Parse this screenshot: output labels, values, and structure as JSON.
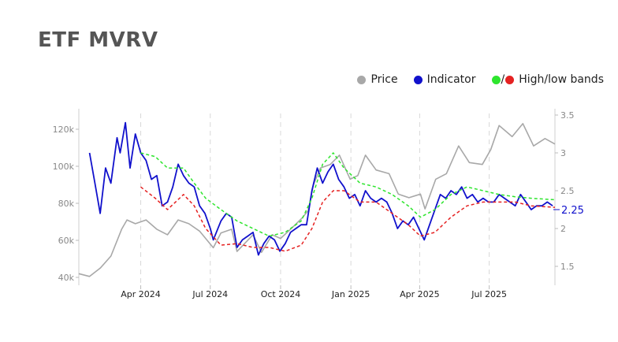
{
  "title": "ETF MVRV",
  "legend": {
    "price": {
      "label": "Price",
      "color": "#a8a8a8"
    },
    "indicator": {
      "label": "Indicator",
      "color": "#1111cc"
    },
    "bands": {
      "label": "High/low bands",
      "high_color": "#2ee52e",
      "low_color": "#e52222",
      "separator": "/"
    }
  },
  "chart_data": {
    "type": "line",
    "title": "ETF MVRV",
    "x_range": [
      "2024-01-11",
      "2025-09-25"
    ],
    "x_ticks": [
      {
        "label": "Apr 2024",
        "date": "2024-04-01"
      },
      {
        "label": "Jul 2024",
        "date": "2024-07-01"
      },
      {
        "label": "Oct 2024",
        "date": "2024-10-01"
      },
      {
        "label": "Jan 2025",
        "date": "2025-01-01"
      },
      {
        "label": "Apr 2025",
        "date": "2025-04-01"
      },
      {
        "label": "Jul 2025",
        "date": "2025-07-01"
      }
    ],
    "y_left": {
      "ticks": [
        "40k",
        "60k",
        "80k",
        "100k",
        "120k"
      ],
      "values": [
        40000,
        60000,
        80000,
        100000,
        120000
      ],
      "range": [
        38000,
        126000
      ]
    },
    "y_right": {
      "ticks": [
        "1.5",
        "2",
        "2.5",
        "3",
        "3.5"
      ],
      "values": [
        1.5,
        2,
        2.5,
        3,
        3.5
      ],
      "range": [
        1.33,
        3.5
      ]
    },
    "grid": "vertical dashed at month ticks",
    "legend_position": "top-right",
    "current_value_label": "2.25",
    "current_value": 2.25,
    "series": [
      {
        "name": "Price",
        "axis": "left",
        "color": "#a8a8a8",
        "points": [
          [
            "2024-01-11",
            42000
          ],
          [
            "2024-01-25",
            40500
          ],
          [
            "2024-02-08",
            45000
          ],
          [
            "2024-02-22",
            51500
          ],
          [
            "2024-03-07",
            66000
          ],
          [
            "2024-03-14",
            71000
          ],
          [
            "2024-03-25",
            69000
          ],
          [
            "2024-04-08",
            71000
          ],
          [
            "2024-04-22",
            66000
          ],
          [
            "2024-05-06",
            63000
          ],
          [
            "2024-05-20",
            71000
          ],
          [
            "2024-06-03",
            69000
          ],
          [
            "2024-06-17",
            65000
          ],
          [
            "2024-07-05",
            56000
          ],
          [
            "2024-07-15",
            64000
          ],
          [
            "2024-07-29",
            66000
          ],
          [
            "2024-08-05",
            54000
          ],
          [
            "2024-08-26",
            63000
          ],
          [
            "2024-09-06",
            53500
          ],
          [
            "2024-09-20",
            63000
          ],
          [
            "2024-10-01",
            61000
          ],
          [
            "2024-10-14",
            66000
          ],
          [
            "2024-10-29",
            72000
          ],
          [
            "2024-11-06",
            76000
          ],
          [
            "2024-11-13",
            90000
          ],
          [
            "2024-11-22",
            99000
          ],
          [
            "2024-12-05",
            101000
          ],
          [
            "2024-12-17",
            106000
          ],
          [
            "2024-12-31",
            93000
          ],
          [
            "2025-01-10",
            95000
          ],
          [
            "2025-01-20",
            106000
          ],
          [
            "2025-02-03",
            98000
          ],
          [
            "2025-02-20",
            96000
          ],
          [
            "2025-03-04",
            85000
          ],
          [
            "2025-03-18",
            83000
          ],
          [
            "2025-04-02",
            85000
          ],
          [
            "2025-04-08",
            77000
          ],
          [
            "2025-04-22",
            93000
          ],
          [
            "2025-05-06",
            96000
          ],
          [
            "2025-05-22",
            111000
          ],
          [
            "2025-06-05",
            102000
          ],
          [
            "2025-06-22",
            101000
          ],
          [
            "2025-07-03",
            109000
          ],
          [
            "2025-07-14",
            122000
          ],
          [
            "2025-07-31",
            116000
          ],
          [
            "2025-08-14",
            123000
          ],
          [
            "2025-08-28",
            111000
          ],
          [
            "2025-09-12",
            115000
          ],
          [
            "2025-09-25",
            112000
          ]
        ]
      },
      {
        "name": "Indicator",
        "axis": "right",
        "color": "#1111cc",
        "points": [
          [
            "2024-01-25",
            3.0
          ],
          [
            "2024-02-01",
            2.6
          ],
          [
            "2024-02-08",
            2.2
          ],
          [
            "2024-02-15",
            2.8
          ],
          [
            "2024-02-22",
            2.6
          ],
          [
            "2024-03-01",
            3.2
          ],
          [
            "2024-03-05",
            3.0
          ],
          [
            "2024-03-12",
            3.4
          ],
          [
            "2024-03-18",
            2.8
          ],
          [
            "2024-03-25",
            3.25
          ],
          [
            "2024-04-01",
            3.0
          ],
          [
            "2024-04-08",
            2.9
          ],
          [
            "2024-04-15",
            2.65
          ],
          [
            "2024-04-22",
            2.7
          ],
          [
            "2024-04-29",
            2.3
          ],
          [
            "2024-05-06",
            2.35
          ],
          [
            "2024-05-13",
            2.55
          ],
          [
            "2024-05-20",
            2.85
          ],
          [
            "2024-05-27",
            2.7
          ],
          [
            "2024-06-03",
            2.6
          ],
          [
            "2024-06-10",
            2.55
          ],
          [
            "2024-06-17",
            2.3
          ],
          [
            "2024-06-24",
            2.2
          ],
          [
            "2024-07-01",
            2.0
          ],
          [
            "2024-07-05",
            1.85
          ],
          [
            "2024-07-15",
            2.1
          ],
          [
            "2024-07-22",
            2.2
          ],
          [
            "2024-07-29",
            2.15
          ],
          [
            "2024-08-05",
            1.75
          ],
          [
            "2024-08-12",
            1.85
          ],
          [
            "2024-08-19",
            1.9
          ],
          [
            "2024-08-26",
            1.95
          ],
          [
            "2024-09-02",
            1.65
          ],
          [
            "2024-09-09",
            1.8
          ],
          [
            "2024-09-16",
            1.9
          ],
          [
            "2024-09-23",
            1.85
          ],
          [
            "2024-09-30",
            1.7
          ],
          [
            "2024-10-07",
            1.8
          ],
          [
            "2024-10-14",
            1.95
          ],
          [
            "2024-10-21",
            2.0
          ],
          [
            "2024-10-28",
            2.05
          ],
          [
            "2024-11-04",
            2.05
          ],
          [
            "2024-11-11",
            2.5
          ],
          [
            "2024-11-18",
            2.8
          ],
          [
            "2024-11-25",
            2.6
          ],
          [
            "2024-12-02",
            2.75
          ],
          [
            "2024-12-09",
            2.85
          ],
          [
            "2024-12-16",
            2.65
          ],
          [
            "2024-12-23",
            2.55
          ],
          [
            "2024-12-30",
            2.4
          ],
          [
            "2025-01-06",
            2.45
          ],
          [
            "2025-01-13",
            2.3
          ],
          [
            "2025-01-20",
            2.5
          ],
          [
            "2025-01-27",
            2.4
          ],
          [
            "2025-02-03",
            2.35
          ],
          [
            "2025-02-10",
            2.4
          ],
          [
            "2025-02-17",
            2.35
          ],
          [
            "2025-02-24",
            2.2
          ],
          [
            "2025-03-03",
            2.0
          ],
          [
            "2025-03-10",
            2.1
          ],
          [
            "2025-03-17",
            2.05
          ],
          [
            "2025-03-24",
            2.15
          ],
          [
            "2025-03-31",
            2.0
          ],
          [
            "2025-04-07",
            1.85
          ],
          [
            "2025-04-14",
            2.05
          ],
          [
            "2025-04-21",
            2.25
          ],
          [
            "2025-04-28",
            2.45
          ],
          [
            "2025-05-05",
            2.4
          ],
          [
            "2025-05-12",
            2.5
          ],
          [
            "2025-05-19",
            2.45
          ],
          [
            "2025-05-26",
            2.55
          ],
          [
            "2025-06-02",
            2.4
          ],
          [
            "2025-06-09",
            2.45
          ],
          [
            "2025-06-16",
            2.35
          ],
          [
            "2025-06-23",
            2.4
          ],
          [
            "2025-06-30",
            2.35
          ],
          [
            "2025-07-07",
            2.35
          ],
          [
            "2025-07-14",
            2.45
          ],
          [
            "2025-07-21",
            2.4
          ],
          [
            "2025-07-28",
            2.35
          ],
          [
            "2025-08-04",
            2.3
          ],
          [
            "2025-08-11",
            2.45
          ],
          [
            "2025-08-18",
            2.35
          ],
          [
            "2025-08-25",
            2.25
          ],
          [
            "2025-09-01",
            2.3
          ],
          [
            "2025-09-08",
            2.3
          ],
          [
            "2025-09-15",
            2.35
          ],
          [
            "2025-09-22",
            2.3
          ]
        ]
      },
      {
        "name": "High band",
        "axis": "right",
        "color": "#2ee52e",
        "points": [
          [
            "2024-04-01",
            3.0
          ],
          [
            "2024-04-20",
            2.95
          ],
          [
            "2024-05-06",
            2.8
          ],
          [
            "2024-05-27",
            2.8
          ],
          [
            "2024-06-10",
            2.6
          ],
          [
            "2024-06-25",
            2.4
          ],
          [
            "2024-07-15",
            2.25
          ],
          [
            "2024-08-05",
            2.1
          ],
          [
            "2024-08-26",
            2.0
          ],
          [
            "2024-09-16",
            1.9
          ],
          [
            "2024-10-07",
            1.95
          ],
          [
            "2024-10-28",
            2.1
          ],
          [
            "2024-11-11",
            2.4
          ],
          [
            "2024-11-25",
            2.85
          ],
          [
            "2024-12-09",
            3.0
          ],
          [
            "2024-12-23",
            2.8
          ],
          [
            "2025-01-13",
            2.6
          ],
          [
            "2025-02-03",
            2.55
          ],
          [
            "2025-02-24",
            2.45
          ],
          [
            "2025-03-17",
            2.3
          ],
          [
            "2025-04-02",
            2.15
          ],
          [
            "2025-04-21",
            2.25
          ],
          [
            "2025-05-12",
            2.45
          ],
          [
            "2025-06-02",
            2.55
          ],
          [
            "2025-06-23",
            2.5
          ],
          [
            "2025-07-14",
            2.45
          ],
          [
            "2025-08-04",
            2.42
          ],
          [
            "2025-08-25",
            2.4
          ],
          [
            "2025-09-25",
            2.38
          ]
        ]
      },
      {
        "name": "Low band",
        "axis": "right",
        "color": "#e52222",
        "points": [
          [
            "2024-04-01",
            2.55
          ],
          [
            "2024-04-20",
            2.4
          ],
          [
            "2024-05-06",
            2.25
          ],
          [
            "2024-05-27",
            2.45
          ],
          [
            "2024-06-10",
            2.3
          ],
          [
            "2024-06-25",
            2.0
          ],
          [
            "2024-07-15",
            1.78
          ],
          [
            "2024-08-05",
            1.8
          ],
          [
            "2024-08-26",
            1.75
          ],
          [
            "2024-09-16",
            1.75
          ],
          [
            "2024-10-07",
            1.7
          ],
          [
            "2024-10-28",
            1.78
          ],
          [
            "2024-11-11",
            2.0
          ],
          [
            "2024-11-25",
            2.35
          ],
          [
            "2024-12-09",
            2.5
          ],
          [
            "2024-12-23",
            2.5
          ],
          [
            "2025-01-13",
            2.35
          ],
          [
            "2025-02-03",
            2.35
          ],
          [
            "2025-02-24",
            2.2
          ],
          [
            "2025-03-17",
            2.05
          ],
          [
            "2025-04-02",
            1.9
          ],
          [
            "2025-04-21",
            1.95
          ],
          [
            "2025-05-12",
            2.15
          ],
          [
            "2025-06-02",
            2.3
          ],
          [
            "2025-06-23",
            2.35
          ],
          [
            "2025-07-14",
            2.35
          ],
          [
            "2025-08-04",
            2.35
          ],
          [
            "2025-08-25",
            2.3
          ],
          [
            "2025-09-25",
            2.28
          ]
        ]
      }
    ]
  }
}
